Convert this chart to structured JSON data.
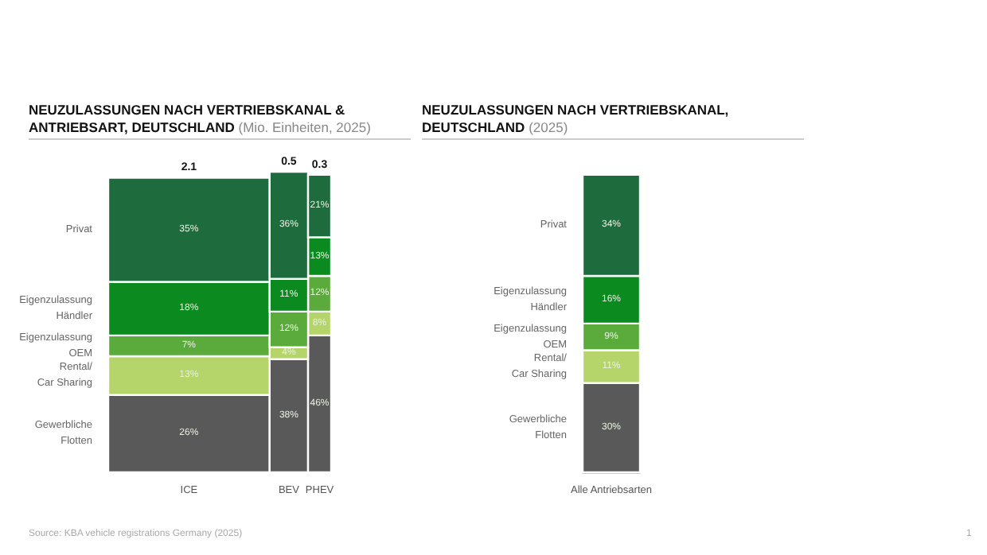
{
  "chart_data": [
    {
      "type": "bar",
      "title": "NEUZULASSUNGEN NACH VERTRIEBSKANAL & ANTRIEBSART, DEUTSCHLAND",
      "subtitle": "(Mio. Einheiten, 2025)",
      "categories": [
        "ICE",
        "BEV",
        "PHEV"
      ],
      "stacked": true,
      "series": [
        {
          "name": "Gewerbliche Flotten",
          "color": "#595959",
          "values": [
            26,
            38,
            46
          ],
          "value_labels": [
            "26%",
            "38%",
            "46%"
          ]
        },
        {
          "name": "Rental/ Car Sharing",
          "color": "#b5d56a",
          "values": [
            13,
            4,
            8
          ],
          "value_labels": [
            "13%",
            "4%",
            "8%"
          ]
        },
        {
          "name": "Eigenzulassung OEM",
          "color": "#5aab3c",
          "values": [
            7,
            12,
            12
          ],
          "value_labels": [
            "7%",
            "12%",
            "12%"
          ]
        },
        {
          "name": "Eigenzulassung Händler",
          "color": "#0b8a1f",
          "values": [
            18,
            11,
            13
          ],
          "value_labels": [
            "18%",
            "11%",
            "13%"
          ]
        },
        {
          "name": "Privat",
          "color": "#1e6b3d",
          "values": [
            35,
            36,
            21
          ],
          "value_labels": [
            "35%",
            "36%",
            "21%"
          ]
        }
      ],
      "annotations": [
        "2.1",
        "0.5",
        "0.3",
        "Source: KBA vehicle registrations Germany (2025)"
      ]
    },
    {
      "type": "bar",
      "title": "NEUZULASSUNGEN NACH VERTRIEBSKANAL, DEUTSCHLAND",
      "subtitle": "(2025)",
      "categories": [
        "Alle Antriebsarten"
      ],
      "stacked": true,
      "series": [
        {
          "name": "Gewerbliche Flotten",
          "color": "#595959",
          "values": [
            30
          ],
          "value_labels": [
            "30%"
          ]
        },
        {
          "name": "Rental/ Car Sharing",
          "color": "#b5d56a",
          "values": [
            11
          ],
          "value_labels": [
            "11%"
          ]
        },
        {
          "name": "Eigenzulassung OEM",
          "color": "#5aab3c",
          "values": [
            9
          ],
          "value_labels": [
            "9%"
          ]
        },
        {
          "name": "Eigenzulassung Händler",
          "color": "#0b8a1f",
          "values": [
            16
          ],
          "value_labels": [
            "16%"
          ]
        },
        {
          "name": "Privat",
          "color": "#1e6b3d",
          "values": [
            34
          ],
          "value_labels": [
            "34%"
          ]
        }
      ],
      "annotations": [
        "1"
      ]
    }
  ]
}
